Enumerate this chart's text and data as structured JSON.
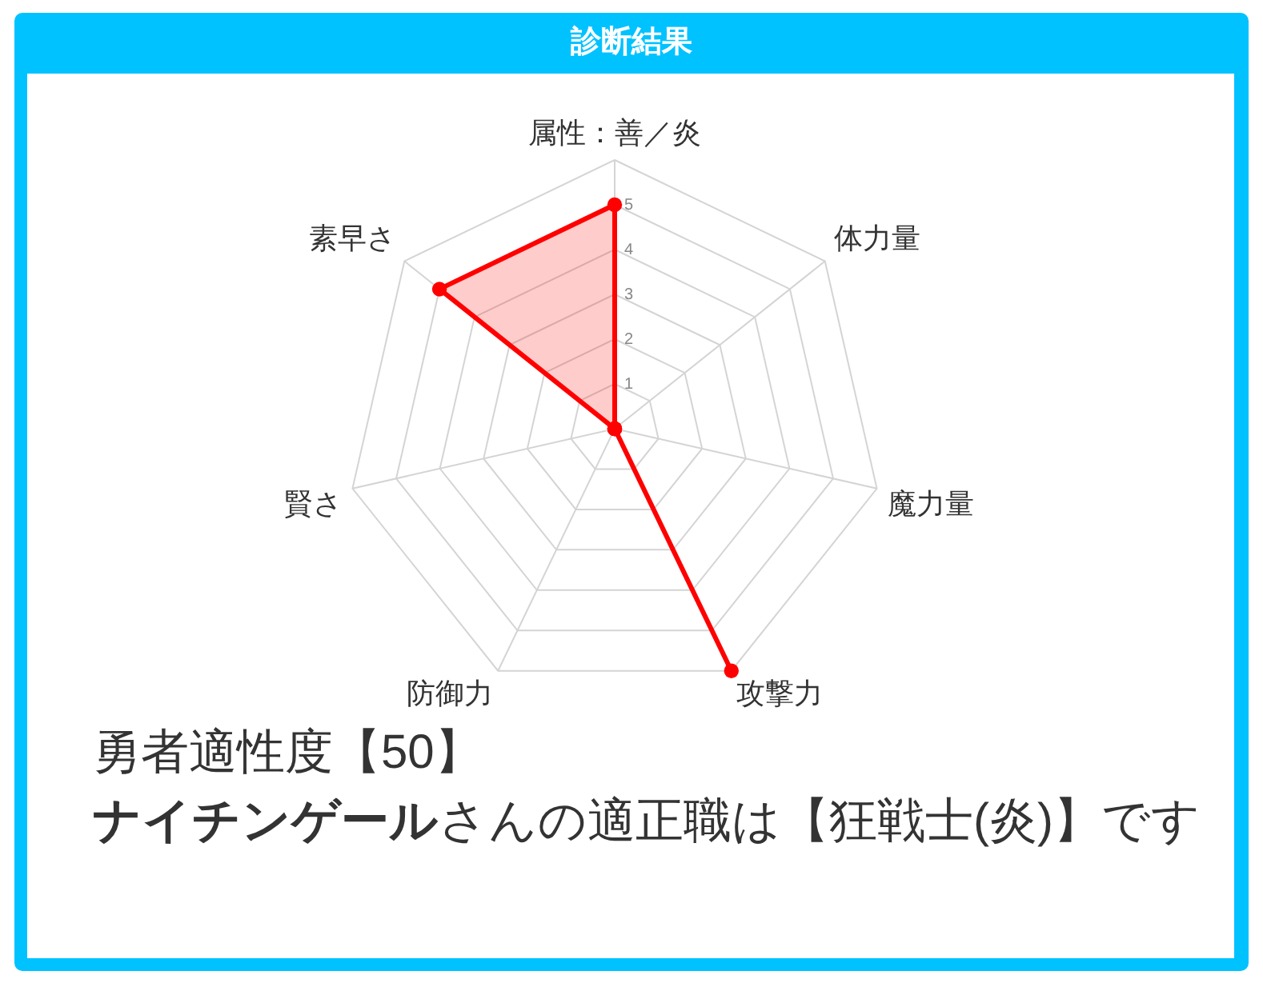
{
  "chart_data": {
    "type": "radar",
    "title": "診断結果",
    "categories": [
      "属性：善／炎",
      "体力量",
      "魔力量",
      "攻撃力",
      "防御力",
      "賢さ",
      "素早さ"
    ],
    "series": [
      {
        "color": "#ff0000",
        "values": [
          5,
          0,
          0,
          6,
          0,
          0,
          5
        ]
      }
    ],
    "ylim": [
      0,
      6
    ],
    "yticks": [
      1,
      2,
      3,
      4,
      5
    ],
    "grid": true,
    "marker": "circle",
    "annotations": [
      "勇者適性度【50】",
      "ナイチンゲール",
      "さんの適正職は【狂戦士(炎)】です"
    ]
  }
}
